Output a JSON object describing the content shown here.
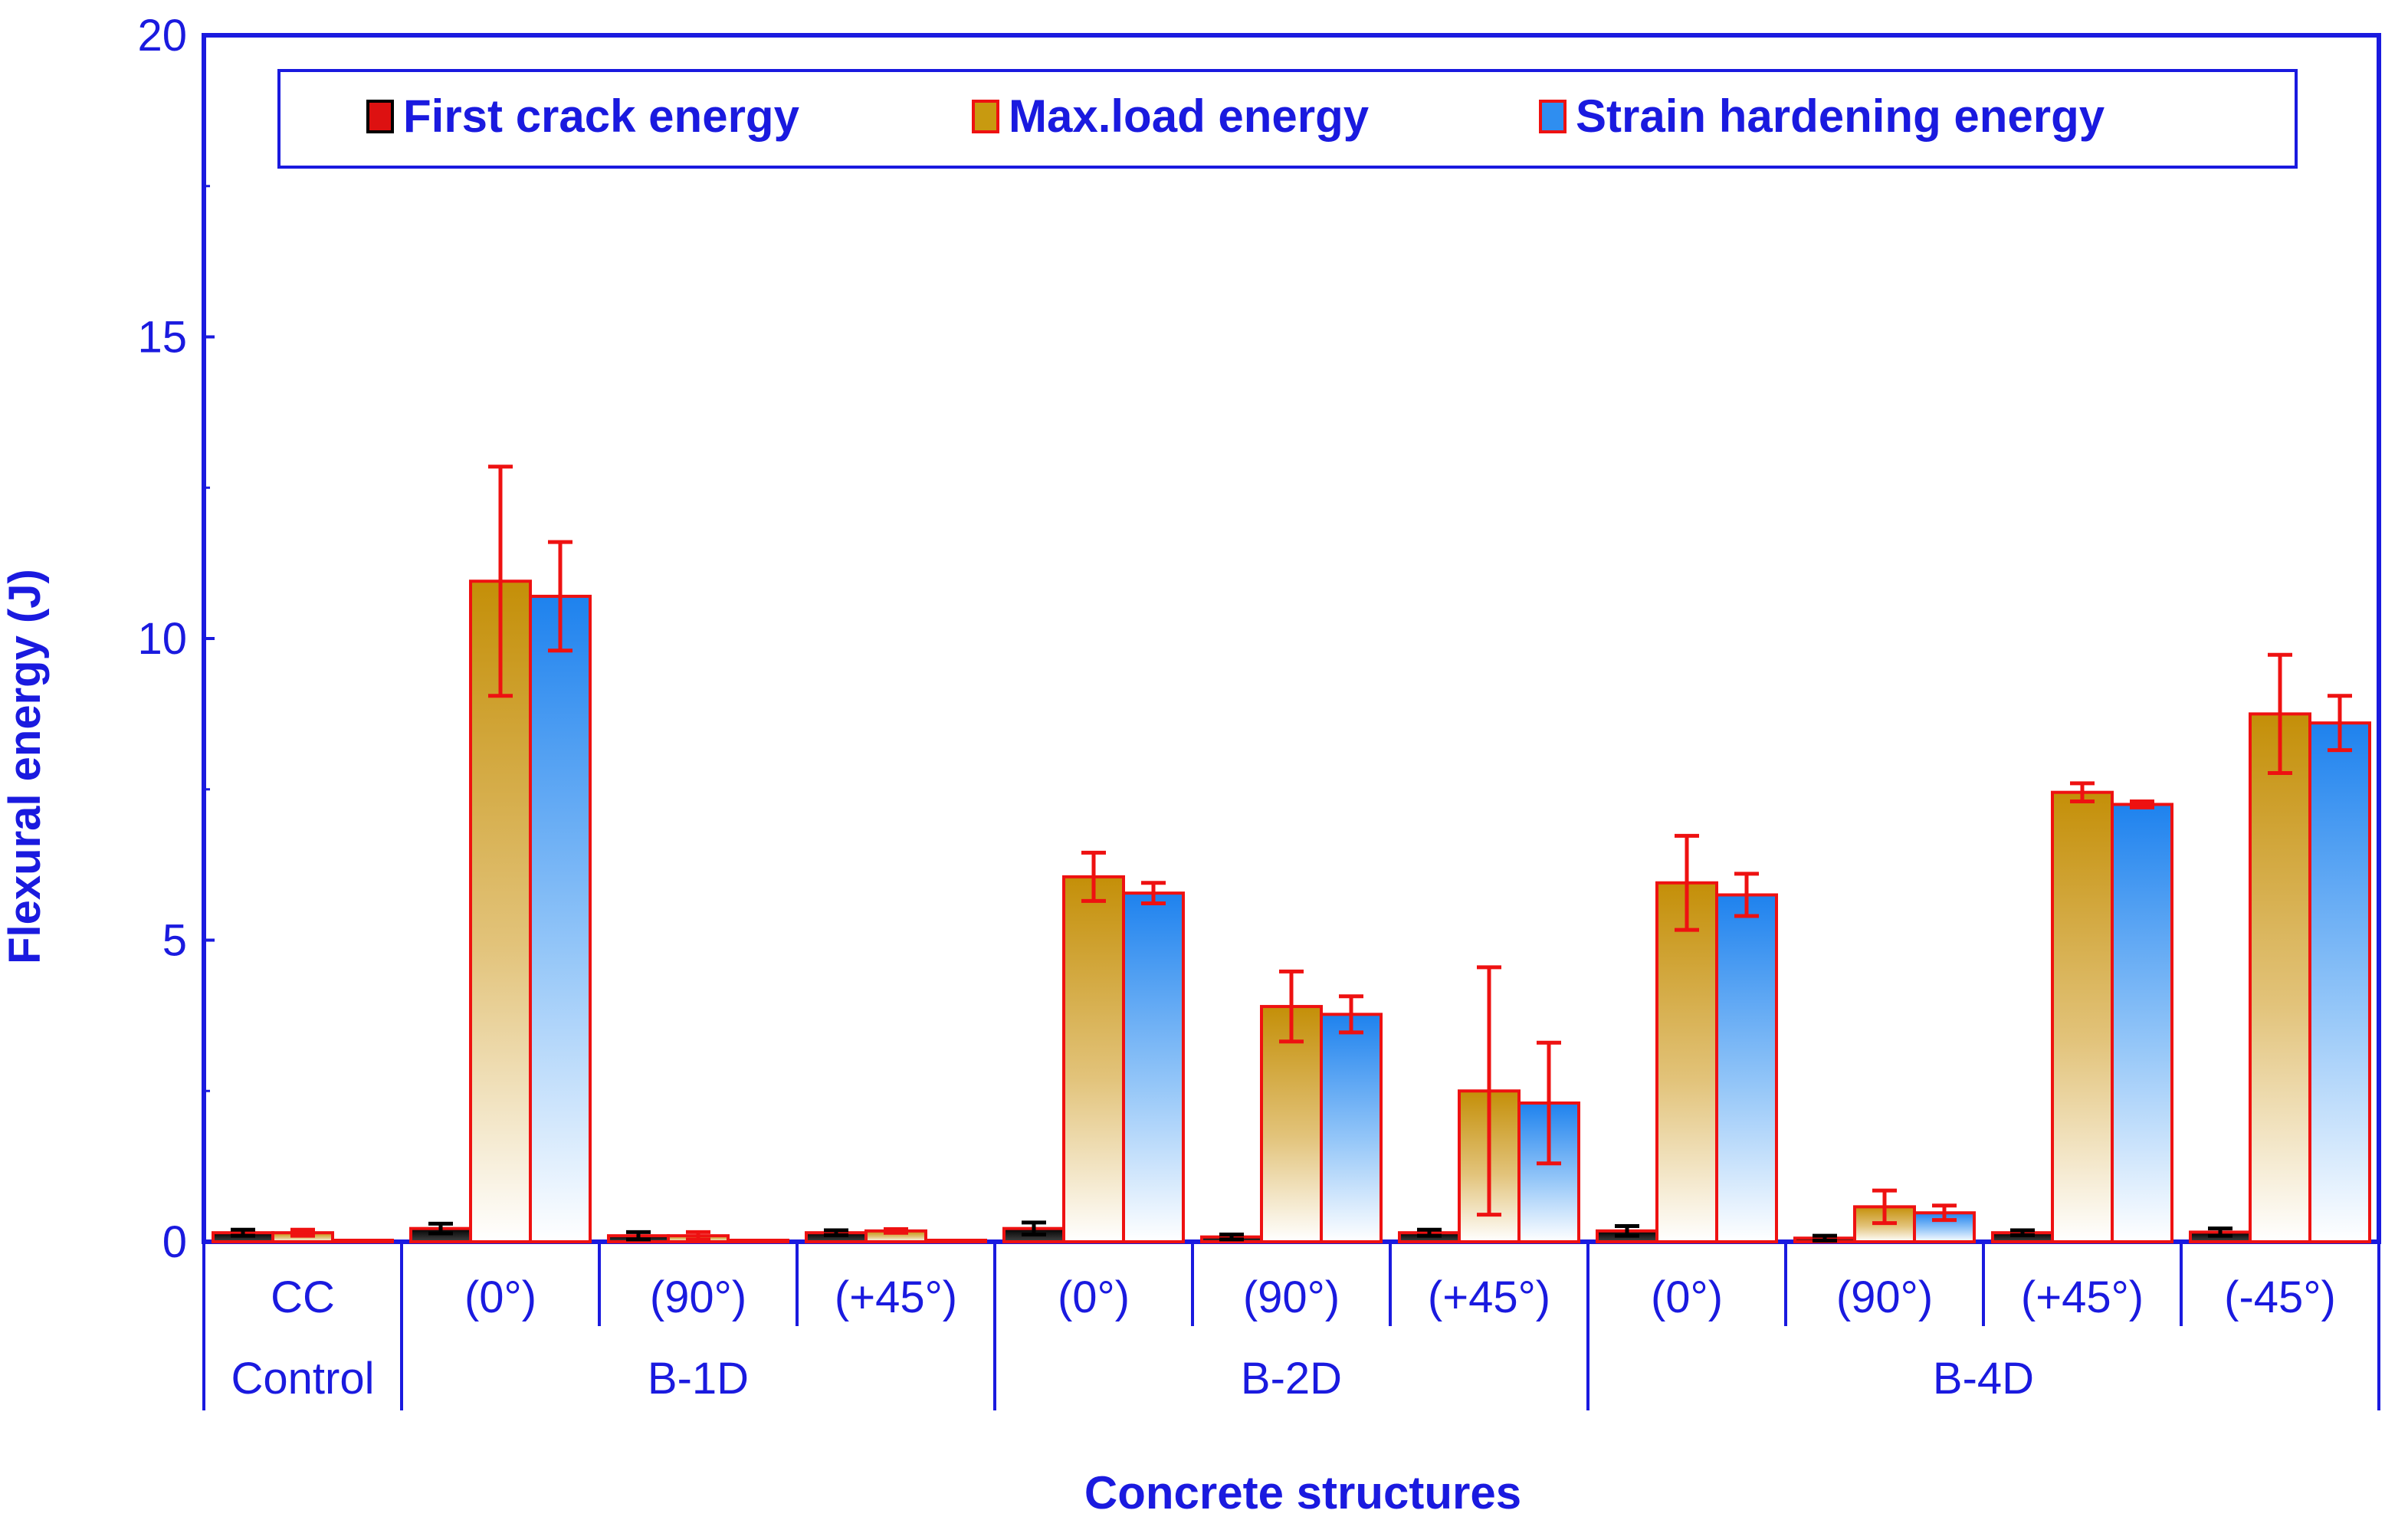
{
  "chart_data": {
    "type": "bar",
    "title": "",
    "xlabel": "Concrete structures",
    "ylabel": "Flexural energy (J)",
    "ylim": [
      0,
      20
    ],
    "yticks": [
      0,
      5,
      10,
      15,
      20
    ],
    "legend_position": "top",
    "categories": [
      "CC",
      "(0°)",
      "(90°)",
      "(+45°)",
      "(0°)",
      "(90°)",
      "(+45°)",
      "(0°)",
      "(90°)",
      "(+45°)",
      "(-45°)"
    ],
    "groups": [
      {
        "label": "Control",
        "span": 1
      },
      {
        "label": "B-1D",
        "span": 3
      },
      {
        "label": "B-2D",
        "span": 3
      },
      {
        "label": "B-4D",
        "span": 4
      }
    ],
    "series": [
      {
        "name": "First crack energy",
        "style": "dark",
        "values": [
          0.15,
          0.22,
          0.1,
          0.15,
          0.22,
          0.08,
          0.15,
          0.18,
          0.06,
          0.15,
          0.16
        ],
        "errors": [
          0.05,
          0.08,
          0.06,
          0.04,
          0.1,
          0.04,
          0.05,
          0.08,
          0.04,
          0.04,
          0.06
        ]
      },
      {
        "name": "Max.load energy",
        "style": "gold",
        "values": [
          0.15,
          10.95,
          0.1,
          0.18,
          6.05,
          3.9,
          2.5,
          5.95,
          0.58,
          7.45,
          8.75
        ],
        "errors": [
          0.05,
          1.9,
          0.06,
          0.03,
          0.4,
          0.58,
          2.05,
          0.78,
          0.27,
          0.15,
          0.98
        ]
      },
      {
        "name": "Strain hardening energy",
        "style": "blue",
        "values": [
          0.02,
          10.7,
          0.02,
          0.02,
          5.78,
          3.77,
          2.3,
          5.75,
          0.48,
          7.25,
          8.6
        ],
        "errors": [
          0.0,
          0.9,
          0.0,
          0.0,
          0.17,
          0.3,
          1.0,
          0.35,
          0.12,
          0.05,
          0.45
        ]
      }
    ]
  },
  "colors": {
    "axis": "#1a1adf",
    "text": "#1a1adf",
    "error_bar": "#ee1111",
    "bar_edge": "#ee1111",
    "gold": "#c89a10",
    "blue": "#2f8ef0",
    "dark": "#111111",
    "first_crack_marker": "#dd1111"
  }
}
